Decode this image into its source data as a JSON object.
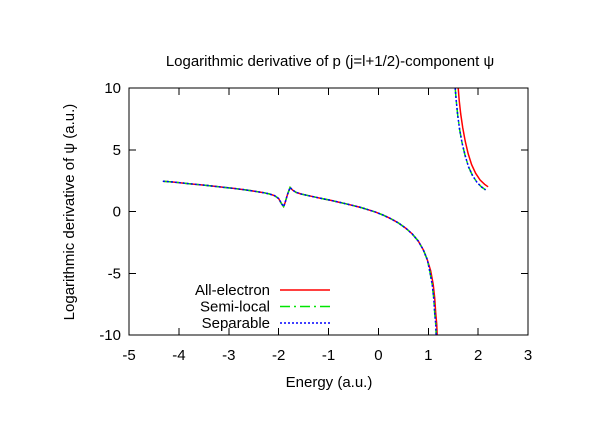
{
  "chart_data": {
    "type": "line",
    "title": "Logarithmic derivative of p (j=l+1/2)-component ψ",
    "xlabel": "Energy (a.u.)",
    "ylabel": "Logarithmic derivative of ψ (a.u.)",
    "xlim": [
      -5,
      3
    ],
    "ylim": [
      -10,
      10
    ],
    "xticks": [
      -5,
      -4,
      -3,
      -2,
      -1,
      0,
      1,
      2,
      3
    ],
    "yticks": [
      -10,
      -5,
      0,
      5,
      10
    ],
    "grid": false,
    "legend_position": "inside-bottom-left",
    "background_color": "#ffffff",
    "frame_color": "#000000",
    "series": [
      {
        "name": "All-electron",
        "color": "#ff0000",
        "dash": "solid",
        "segments": [
          [
            [
              -4.32,
              2.45
            ],
            [
              -4.1,
              2.38
            ],
            [
              -3.8,
              2.25
            ],
            [
              -3.5,
              2.14
            ],
            [
              -3.2,
              2.0
            ],
            [
              -2.9,
              1.87
            ],
            [
              -2.65,
              1.74
            ],
            [
              -2.45,
              1.62
            ],
            [
              -2.3,
              1.52
            ],
            [
              -2.18,
              1.42
            ],
            [
              -2.08,
              1.28
            ],
            [
              -2.0,
              1.05
            ],
            [
              -1.94,
              0.62
            ],
            [
              -1.9,
              0.4
            ],
            [
              -1.87,
              0.72
            ],
            [
              -1.82,
              1.4
            ],
            [
              -1.77,
              1.95
            ],
            [
              -1.72,
              1.73
            ],
            [
              -1.65,
              1.55
            ],
            [
              -1.55,
              1.42
            ],
            [
              -1.4,
              1.28
            ],
            [
              -1.25,
              1.15
            ],
            [
              -1.1,
              1.02
            ],
            [
              -0.95,
              0.9
            ],
            [
              -0.8,
              0.76
            ],
            [
              -0.65,
              0.62
            ],
            [
              -0.5,
              0.48
            ],
            [
              -0.35,
              0.32
            ],
            [
              -0.2,
              0.14
            ],
            [
              -0.05,
              -0.06
            ],
            [
              0.1,
              -0.3
            ],
            [
              0.25,
              -0.58
            ],
            [
              0.4,
              -0.92
            ],
            [
              0.55,
              -1.35
            ],
            [
              0.68,
              -1.82
            ],
            [
              0.8,
              -2.4
            ],
            [
              0.9,
              -3.1
            ],
            [
              0.98,
              -3.9
            ],
            [
              1.05,
              -4.8
            ],
            [
              1.1,
              -5.9
            ],
            [
              1.13,
              -7.0
            ],
            [
              1.15,
              -8.2
            ],
            [
              1.17,
              -9.1
            ],
            [
              1.18,
              -10
            ]
          ],
          [
            [
              1.6,
              10
            ],
            [
              1.62,
              9.0
            ],
            [
              1.65,
              7.9
            ],
            [
              1.69,
              6.8
            ],
            [
              1.74,
              5.7
            ],
            [
              1.8,
              4.7
            ],
            [
              1.87,
              3.8
            ],
            [
              1.95,
              3.1
            ],
            [
              2.04,
              2.55
            ],
            [
              2.13,
              2.2
            ],
            [
              2.2,
              2.0
            ]
          ]
        ]
      },
      {
        "name": "Semi-local",
        "color": "#00e500",
        "dash": "dash-dot",
        "segments": [
          [
            [
              -4.32,
              2.45
            ],
            [
              -4.1,
              2.38
            ],
            [
              -3.8,
              2.25
            ],
            [
              -3.5,
              2.14
            ],
            [
              -3.2,
              2.0
            ],
            [
              -2.9,
              1.87
            ],
            [
              -2.65,
              1.74
            ],
            [
              -2.45,
              1.62
            ],
            [
              -2.3,
              1.52
            ],
            [
              -2.18,
              1.42
            ],
            [
              -2.08,
              1.28
            ],
            [
              -2.0,
              1.05
            ],
            [
              -1.94,
              0.62
            ],
            [
              -1.9,
              0.4
            ],
            [
              -1.87,
              0.72
            ],
            [
              -1.82,
              1.4
            ],
            [
              -1.77,
              1.95
            ],
            [
              -1.72,
              1.73
            ],
            [
              -1.65,
              1.55
            ],
            [
              -1.55,
              1.42
            ],
            [
              -1.4,
              1.28
            ],
            [
              -1.25,
              1.15
            ],
            [
              -1.1,
              1.02
            ],
            [
              -0.95,
              0.9
            ],
            [
              -0.8,
              0.76
            ],
            [
              -0.65,
              0.62
            ],
            [
              -0.5,
              0.48
            ],
            [
              -0.35,
              0.32
            ],
            [
              -0.2,
              0.14
            ],
            [
              -0.05,
              -0.06
            ],
            [
              0.1,
              -0.3
            ],
            [
              0.25,
              -0.58
            ],
            [
              0.4,
              -0.92
            ],
            [
              0.55,
              -1.35
            ],
            [
              0.68,
              -1.82
            ],
            [
              0.8,
              -2.4
            ],
            [
              0.9,
              -3.1
            ],
            [
              0.98,
              -3.9
            ],
            [
              1.03,
              -4.8
            ],
            [
              1.08,
              -5.9
            ],
            [
              1.11,
              -7.0
            ],
            [
              1.13,
              -8.2
            ],
            [
              1.15,
              -9.1
            ],
            [
              1.16,
              -10
            ]
          ],
          [
            [
              1.54,
              10
            ],
            [
              1.56,
              9.0
            ],
            [
              1.59,
              7.8
            ],
            [
              1.63,
              6.6
            ],
            [
              1.68,
              5.5
            ],
            [
              1.74,
              4.5
            ],
            [
              1.81,
              3.6
            ],
            [
              1.89,
              2.9
            ],
            [
              1.98,
              2.35
            ],
            [
              2.07,
              1.98
            ],
            [
              2.15,
              1.75
            ]
          ]
        ]
      },
      {
        "name": "Separable",
        "color": "#0000ff",
        "dash": "dotted",
        "segments": [
          [
            [
              -4.32,
              2.45
            ],
            [
              -4.1,
              2.38
            ],
            [
              -3.8,
              2.25
            ],
            [
              -3.5,
              2.14
            ],
            [
              -3.2,
              2.0
            ],
            [
              -2.9,
              1.87
            ],
            [
              -2.65,
              1.74
            ],
            [
              -2.45,
              1.62
            ],
            [
              -2.3,
              1.52
            ],
            [
              -2.18,
              1.42
            ],
            [
              -2.08,
              1.28
            ],
            [
              -2.0,
              1.05
            ],
            [
              -1.94,
              0.62
            ],
            [
              -1.9,
              0.4
            ],
            [
              -1.87,
              0.72
            ],
            [
              -1.82,
              1.4
            ],
            [
              -1.77,
              1.95
            ],
            [
              -1.72,
              1.73
            ],
            [
              -1.65,
              1.55
            ],
            [
              -1.55,
              1.42
            ],
            [
              -1.4,
              1.28
            ],
            [
              -1.25,
              1.15
            ],
            [
              -1.1,
              1.02
            ],
            [
              -0.95,
              0.9
            ],
            [
              -0.8,
              0.76
            ],
            [
              -0.65,
              0.62
            ],
            [
              -0.5,
              0.48
            ],
            [
              -0.35,
              0.32
            ],
            [
              -0.2,
              0.14
            ],
            [
              -0.05,
              -0.06
            ],
            [
              0.1,
              -0.3
            ],
            [
              0.25,
              -0.58
            ],
            [
              0.4,
              -0.92
            ],
            [
              0.55,
              -1.35
            ],
            [
              0.68,
              -1.82
            ],
            [
              0.8,
              -2.4
            ],
            [
              0.9,
              -3.1
            ],
            [
              0.98,
              -3.9
            ],
            [
              1.03,
              -4.8
            ],
            [
              1.08,
              -5.9
            ],
            [
              1.11,
              -7.0
            ],
            [
              1.13,
              -8.2
            ],
            [
              1.15,
              -9.1
            ],
            [
              1.16,
              -10
            ]
          ],
          [
            [
              1.54,
              10
            ],
            [
              1.56,
              9.0
            ],
            [
              1.59,
              7.8
            ],
            [
              1.63,
              6.6
            ],
            [
              1.68,
              5.5
            ],
            [
              1.74,
              4.5
            ],
            [
              1.81,
              3.6
            ],
            [
              1.89,
              2.9
            ],
            [
              1.98,
              2.35
            ],
            [
              2.07,
              1.98
            ],
            [
              2.15,
              1.75
            ]
          ]
        ]
      }
    ]
  }
}
